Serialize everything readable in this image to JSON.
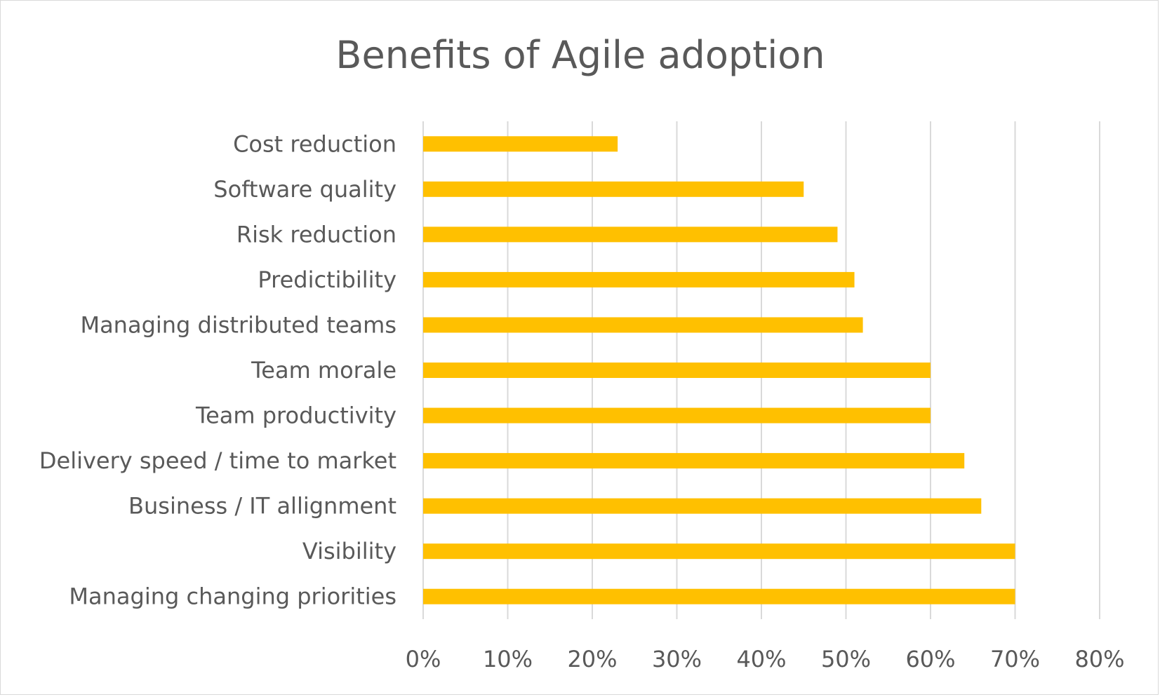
{
  "chart_data": {
    "type": "bar",
    "orientation": "horizontal",
    "title": "Benefits of Agile adoption",
    "categories": [
      "Cost reduction",
      "Software quality",
      "Risk reduction",
      "Predictibility",
      "Managing distributed teams",
      "Team morale",
      "Team productivity",
      "Delivery speed / time to market",
      "Business / IT allignment",
      "Visibility",
      "Managing changing priorities"
    ],
    "series": [
      {
        "values": [
          0.23,
          0.45,
          0.49,
          0.51,
          0.52,
          0.6,
          0.6,
          0.64,
          0.66,
          0.7,
          0.7
        ],
        "color": "#FFC000"
      }
    ],
    "xlim": [
      0,
      0.8
    ],
    "x_ticks": [
      0,
      0.1,
      0.2,
      0.3,
      0.4,
      0.5,
      0.6,
      0.7,
      0.8
    ],
    "x_tick_labels": [
      "0%",
      "10%",
      "20%",
      "30%",
      "40%",
      "50%",
      "60%",
      "70%",
      "80%"
    ],
    "xlabel": "",
    "ylabel": "",
    "grid": "vertical",
    "legend": "none",
    "colors": {
      "bar": "#FFC000",
      "text": "#595959",
      "grid": "#D9D9D9",
      "border": "#D9D9D9"
    }
  }
}
